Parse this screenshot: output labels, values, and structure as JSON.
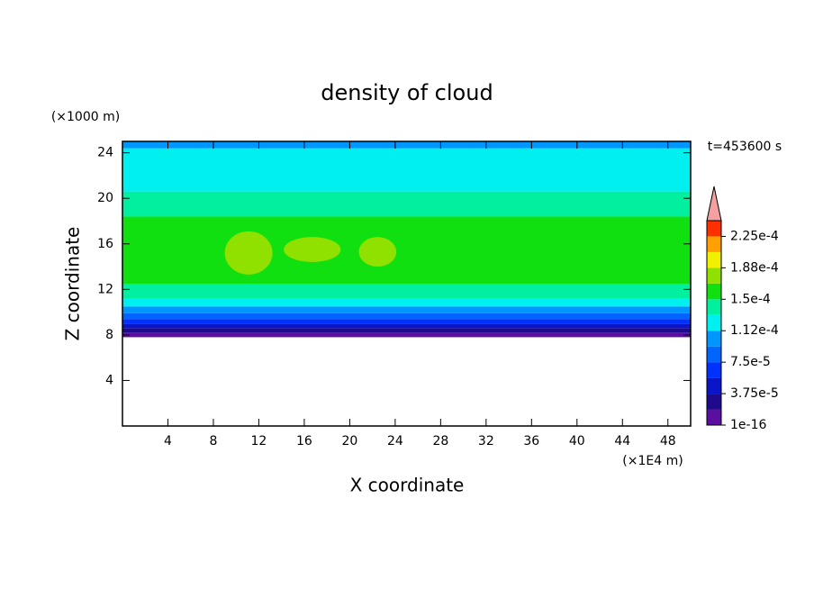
{
  "chart_data": {
    "type": "contour",
    "title": "density of cloud",
    "x_label": "X coordinate",
    "y_label": "Z coordinate",
    "x_unit": "(×1E4 m)",
    "y_unit": "(×1000 m)",
    "time_label": "t=453600 s",
    "xlim": [
      0,
      50
    ],
    "ylim": [
      0,
      25
    ],
    "xticks": [
      4,
      8,
      12,
      16,
      20,
      24,
      28,
      32,
      36,
      40,
      44,
      48
    ],
    "yticks": [
      4,
      8,
      12,
      16,
      20,
      24
    ],
    "layers": {
      "z": [
        7.8,
        8.2,
        8.6,
        9.0,
        9.4,
        9.9,
        10.5,
        11.2,
        12.5,
        18.4,
        20.6,
        24.4,
        25
      ],
      "values": [
        1e-05,
        2.8e-05,
        4.7e-05,
        6.5e-05,
        8.4e-05,
        0.0001,
        0.00012,
        0.00014,
        0.00016,
        0.00014,
        0.00012,
        0.0001
      ]
    },
    "patches": [
      {
        "x": [
          9,
          13.2
        ],
        "z": [
          13.3,
          17.1
        ],
        "value": 0.000175
      },
      {
        "x": [
          14.2,
          19.2
        ],
        "z": [
          14.4,
          16.6
        ],
        "value": 0.000175
      },
      {
        "x": [
          20.8,
          24.1
        ],
        "z": [
          14.0,
          16.6
        ],
        "value": 0.000175
      }
    ],
    "colorbar": {
      "levels": [
        1e-16,
        1.875e-05,
        3.75e-05,
        5.625e-05,
        7.5e-05,
        9.375e-05,
        0.0001125,
        0.00013125,
        0.00015,
        0.00016875,
        0.0001875,
        0.00020625,
        0.000225,
        0.00024375
      ],
      "colors": [
        "#5a0fa0",
        "#1e0a8c",
        "#0a14c8",
        "#0032ff",
        "#0064ff",
        "#0096ff",
        "#00f0f0",
        "#00f0a0",
        "#10e010",
        "#90e000",
        "#f0f000",
        "#ffa000",
        "#ff3000"
      ],
      "extend_color": "#f4a0a0",
      "ticks": [
        {
          "value": 1e-16,
          "label": "1e-16"
        },
        {
          "value": 3.75e-05,
          "label": "3.75e-5"
        },
        {
          "value": 7.5e-05,
          "label": "7.5e-5"
        },
        {
          "value": 0.0001125,
          "label": "1.12e-4"
        },
        {
          "value": 0.00015,
          "label": "1.5e-4"
        },
        {
          "value": 0.0001875,
          "label": "1.88e-4"
        },
        {
          "value": 0.000225,
          "label": "2.25e-4"
        }
      ]
    }
  }
}
